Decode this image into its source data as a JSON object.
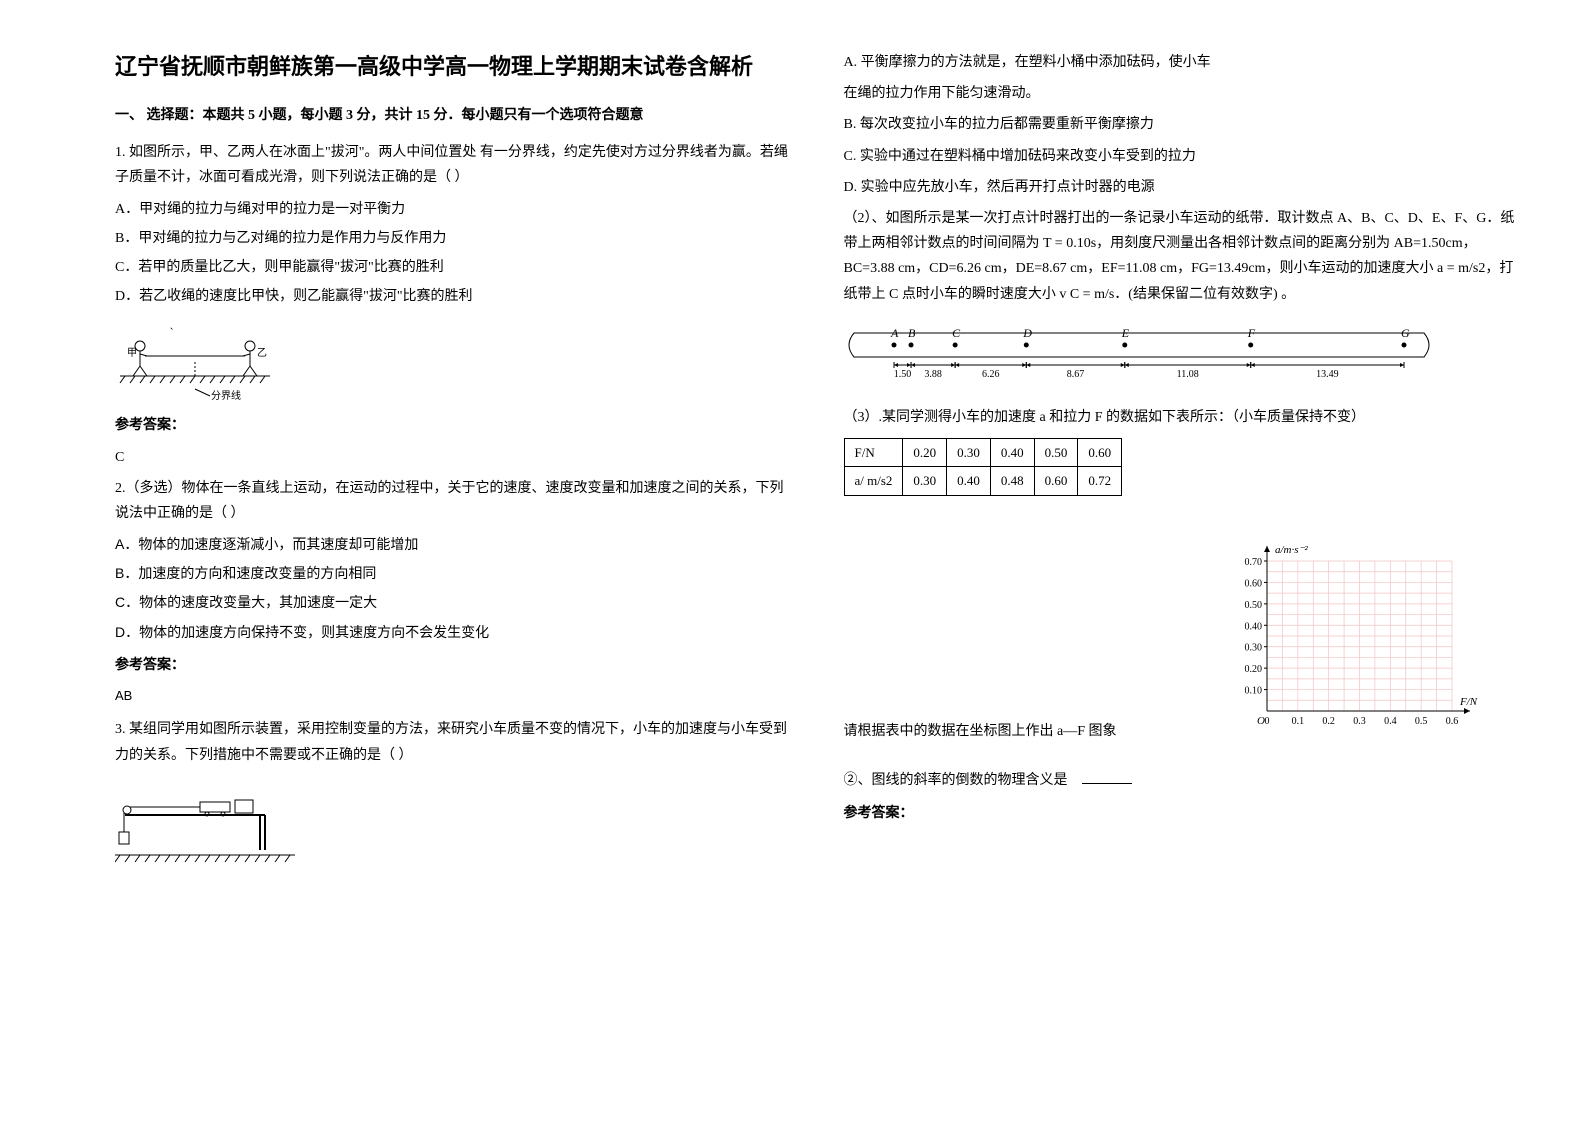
{
  "title": "辽宁省抚顺市朝鲜族第一高级中学高一物理上学期期末试卷含解析",
  "section1_header": "一、 选择题：本题共 5 小题，每小题 3 分，共计 15 分．每小题只有一个选项符合题意",
  "q1": {
    "text": "1. 如图所示，甲、乙两人在冰面上\"拔河\"。两人中间位置处 有一分界线，约定先使对方过分界线者为赢。若绳子质量不计，冰面可看成光滑，则下列说法正确的是（     ）",
    "optA": "A．甲对绳的拉力与绳对甲的拉力是一对平衡力",
    "optB": "B．甲对绳的拉力与乙对绳的拉力是作用力与反作用力",
    "optC": "C．若甲的质量比乙大，则甲能赢得\"拔河\"比赛的胜利",
    "optD": "D．若乙收绳的速度比甲快，则乙能赢得\"拔河\"比赛的胜利",
    "answer": "C",
    "fig_label": "分界线"
  },
  "q2": {
    "text": "2.（多选）物体在一条直线上运动，在运动的过程中，关于它的速度、速度改变量和加速度之间的关系，下列说法中正确的是（            ）",
    "optA": "A．物体的加速度逐渐减小，而其速度却可能增加",
    "optB": "B．加速度的方向和速度改变量的方向相同",
    "optC": "C．物体的速度改变量大，其加速度一定大",
    "optD": "D．物体的加速度方向保持不变，则其速度方向不会发生变化",
    "answer": "AB"
  },
  "q3": {
    "text": "3. 某组同学用如图所示装置，采用控制变量的方法，来研究小车质量不变的情况下，小车的加速度与小车受到力的关系。下列措施中不需要或不正确的是（    ）",
    "p1A": "A. 平衡摩擦力的方法就是，在塑料小桶中添加砝码，使小车",
    "p1A2": "在绳的拉力作用下能匀速滑动。",
    "p1B": "B. 每次改变拉小车的拉力后都需要重新平衡摩擦力",
    "p1C": "C. 实验中通过在塑料桶中增加砝码来改变小车受到的拉力",
    "p1D": "D. 实验中应先放小车，然后再开打点计时器的电源",
    "p2": "（2）、如图所示是某一次打点计时器打出的一条记录小车运动的纸带．取计数点 A、B、C、D、E、F、G．纸带上两相邻计数点的时间间隔为 T = 0.10s，用刻度尺测量出各相邻计数点间的距离分别为 AB=1.50cm，BC=3.88 cm，CD=6.26 cm，DE=8.67 cm，EF=11.08 cm，FG=13.49cm，则小车运动的加速度大小 a =          m/s2，打纸带上 C 点时小车的瞬时速度大小 v C =          m/s．(结果保留二位有效数字) 。",
    "tape_labels": {
      "A": "A",
      "B": "B",
      "C": "C",
      "D": "D",
      "E": "E",
      "F": "F",
      "G": "G"
    },
    "tape_vals": [
      "1.50",
      "3.88",
      "6.26",
      "8.67",
      "11.08",
      "13.49"
    ],
    "p3": "（3）.某同学测得小车的加速度 a 和拉力 F 的数据如下表所示：（小车质量保持不变）",
    "table": {
      "row1_label": "F/N",
      "row1": [
        "0.20",
        "0.30",
        "0.40",
        "0.50",
        "0.60"
      ],
      "row2_label": "a/ m/s2",
      "row2": [
        "0.30",
        "0.40",
        "0.48",
        "0.60",
        "0.72"
      ]
    },
    "chart": {
      "ylabel": "a/m·s⁻²",
      "xlabel": "F/N",
      "yticks": [
        "0.10",
        "0.20",
        "0.30",
        "0.40",
        "0.50",
        "0.60",
        "0.70"
      ],
      "xticks": [
        "0",
        "0.1",
        "0.2",
        "0.3",
        "0.4",
        "0.5",
        "0.6"
      ],
      "grid_color": "#f4c2c2",
      "axis_color": "#000000"
    },
    "p4_prefix": "请根据表中的数据在坐标图上作出 a—F 图象",
    "p5": "②、图线的斜率的倒数的物理含义是"
  },
  "answer_label": "参考答案：",
  "colors": {
    "text": "#000000",
    "bg": "#ffffff"
  }
}
